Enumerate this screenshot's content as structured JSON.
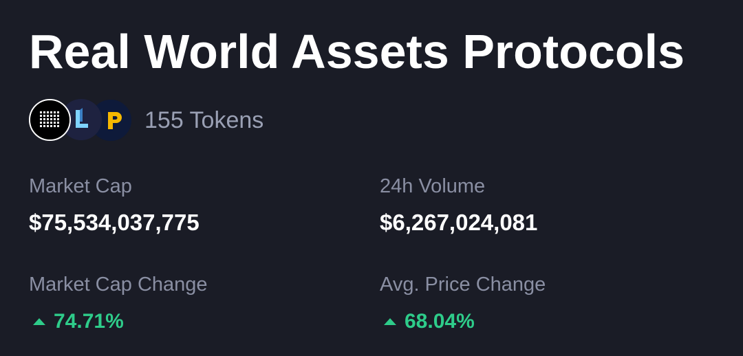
{
  "header": {
    "title": "Real World Assets Protocols"
  },
  "tokens": {
    "count_label": "155 Tokens",
    "avatars": [
      "grid-logo-icon",
      "l-logo-icon",
      "p-logo-icon"
    ]
  },
  "stats": {
    "market_cap": {
      "label": "Market Cap",
      "value": "$75,534,037,775"
    },
    "volume_24h": {
      "label": "24h Volume",
      "value": "$6,267,024,081"
    },
    "market_cap_change": {
      "label": "Market Cap Change",
      "value": "74.71%",
      "direction": "up"
    },
    "avg_price_change": {
      "label": "Avg. Price Change",
      "value": "68.04%",
      "direction": "up"
    }
  },
  "colors": {
    "background": "#1a1c26",
    "positive": "#2ecc8a",
    "label": "#8a8fa3"
  }
}
